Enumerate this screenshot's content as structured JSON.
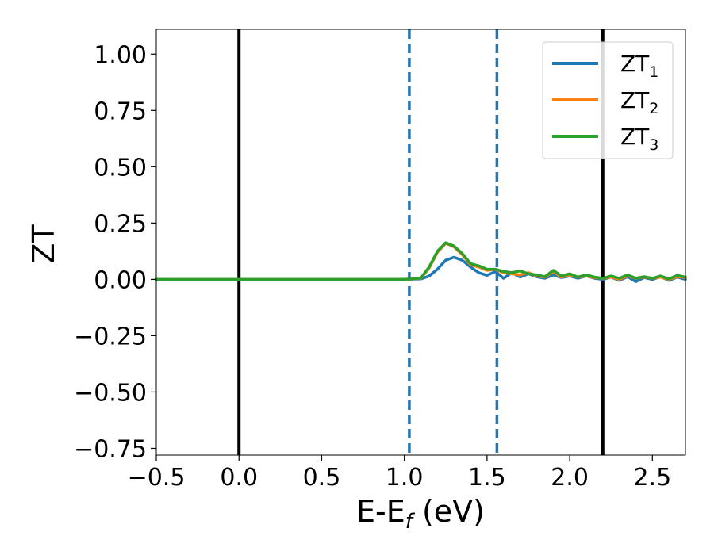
{
  "chart_data": {
    "type": "line",
    "xlabel": {
      "main": "E-E",
      "sub": "f",
      "rest": " (eV)"
    },
    "ylabel": "ZT",
    "xlim": [
      -0.5,
      2.7
    ],
    "ylim": [
      -0.78,
      1.11
    ],
    "xticks": [
      -0.5,
      0.0,
      0.5,
      1.0,
      1.5,
      2.0,
      2.5
    ],
    "xtick_labels": [
      "−0.5",
      "0.0",
      "0.5",
      "1.0",
      "1.5",
      "2.0",
      "2.5"
    ],
    "yticks": [
      1.0,
      0.75,
      0.5,
      0.25,
      0.0,
      -0.25,
      -0.5,
      -0.75
    ],
    "ytick_labels": [
      "1.00",
      "0.75",
      "0.50",
      "0.25",
      "0.00",
      "−0.25",
      "−0.50",
      "−0.75"
    ],
    "grid": false,
    "legend_position": "top-right",
    "vlines": [
      {
        "x": 0.0,
        "color": "#000000",
        "style": "solid"
      },
      {
        "x": 2.2,
        "color": "#000000",
        "style": "solid"
      },
      {
        "x": 1.03,
        "color": "#1f77b4",
        "style": "dashed"
      },
      {
        "x": 1.56,
        "color": "#1f77b4",
        "style": "dashed"
      }
    ],
    "series": [
      {
        "name": "ZT",
        "sub": "1",
        "color": "#1f77b4",
        "x": [
          -0.5,
          1.0,
          1.1,
          1.15,
          1.2,
          1.25,
          1.3,
          1.35,
          1.4,
          1.45,
          1.5,
          1.55,
          1.6,
          1.65,
          1.7,
          1.75,
          1.8,
          1.85,
          1.9,
          1.95,
          2.0,
          2.05,
          2.1,
          2.15,
          2.2,
          2.25,
          2.3,
          2.35,
          2.4,
          2.45,
          2.5,
          2.55,
          2.6,
          2.65,
          2.7
        ],
        "values": [
          0.0,
          0.0,
          0.002,
          0.015,
          0.045,
          0.085,
          0.098,
          0.085,
          0.055,
          0.03,
          0.018,
          0.035,
          0.005,
          0.03,
          0.01,
          0.025,
          0.012,
          0.005,
          0.02,
          0.008,
          0.015,
          0.005,
          0.015,
          0.005,
          0.0,
          0.01,
          -0.005,
          0.012,
          -0.01,
          0.008,
          0.0,
          0.012,
          -0.005,
          0.01,
          0.0
        ]
      },
      {
        "name": "ZT",
        "sub": "2",
        "color": "#ff7f0e",
        "x": [
          -0.5,
          1.0,
          1.1,
          1.15,
          1.2,
          1.25,
          1.3,
          1.35,
          1.4,
          1.45,
          1.5,
          1.55,
          1.6,
          1.65,
          1.7,
          1.75,
          1.8,
          1.85,
          1.9,
          1.95,
          2.0,
          2.05,
          2.1,
          2.15,
          2.2,
          2.25,
          2.3,
          2.35,
          2.4,
          2.45,
          2.5,
          2.55,
          2.6,
          2.65,
          2.7
        ],
        "values": [
          0.0,
          0.0,
          0.005,
          0.05,
          0.12,
          0.16,
          0.145,
          0.11,
          0.065,
          0.055,
          0.04,
          0.045,
          0.03,
          0.025,
          0.02,
          0.03,
          0.015,
          0.01,
          0.035,
          0.01,
          0.02,
          0.01,
          0.015,
          0.008,
          0.005,
          0.01,
          0.0,
          0.015,
          0.005,
          0.01,
          0.005,
          0.01,
          0.0,
          0.012,
          0.008
        ]
      },
      {
        "name": "ZT",
        "sub": "3",
        "color": "#2ca02c",
        "x": [
          -0.5,
          1.0,
          1.1,
          1.15,
          1.2,
          1.25,
          1.3,
          1.35,
          1.4,
          1.45,
          1.5,
          1.55,
          1.6,
          1.65,
          1.7,
          1.75,
          1.8,
          1.85,
          1.9,
          1.95,
          2.0,
          2.05,
          2.1,
          2.15,
          2.2,
          2.25,
          2.3,
          2.35,
          2.4,
          2.45,
          2.5,
          2.55,
          2.6,
          2.65,
          2.7
        ],
        "values": [
          0.0,
          0.0,
          0.006,
          0.055,
          0.125,
          0.163,
          0.148,
          0.115,
          0.07,
          0.06,
          0.045,
          0.045,
          0.035,
          0.03,
          0.038,
          0.025,
          0.02,
          0.012,
          0.04,
          0.015,
          0.025,
          0.01,
          0.02,
          0.01,
          0.005,
          0.015,
          0.005,
          0.02,
          0.005,
          0.012,
          0.005,
          0.015,
          0.002,
          0.018,
          0.01
        ]
      }
    ]
  }
}
